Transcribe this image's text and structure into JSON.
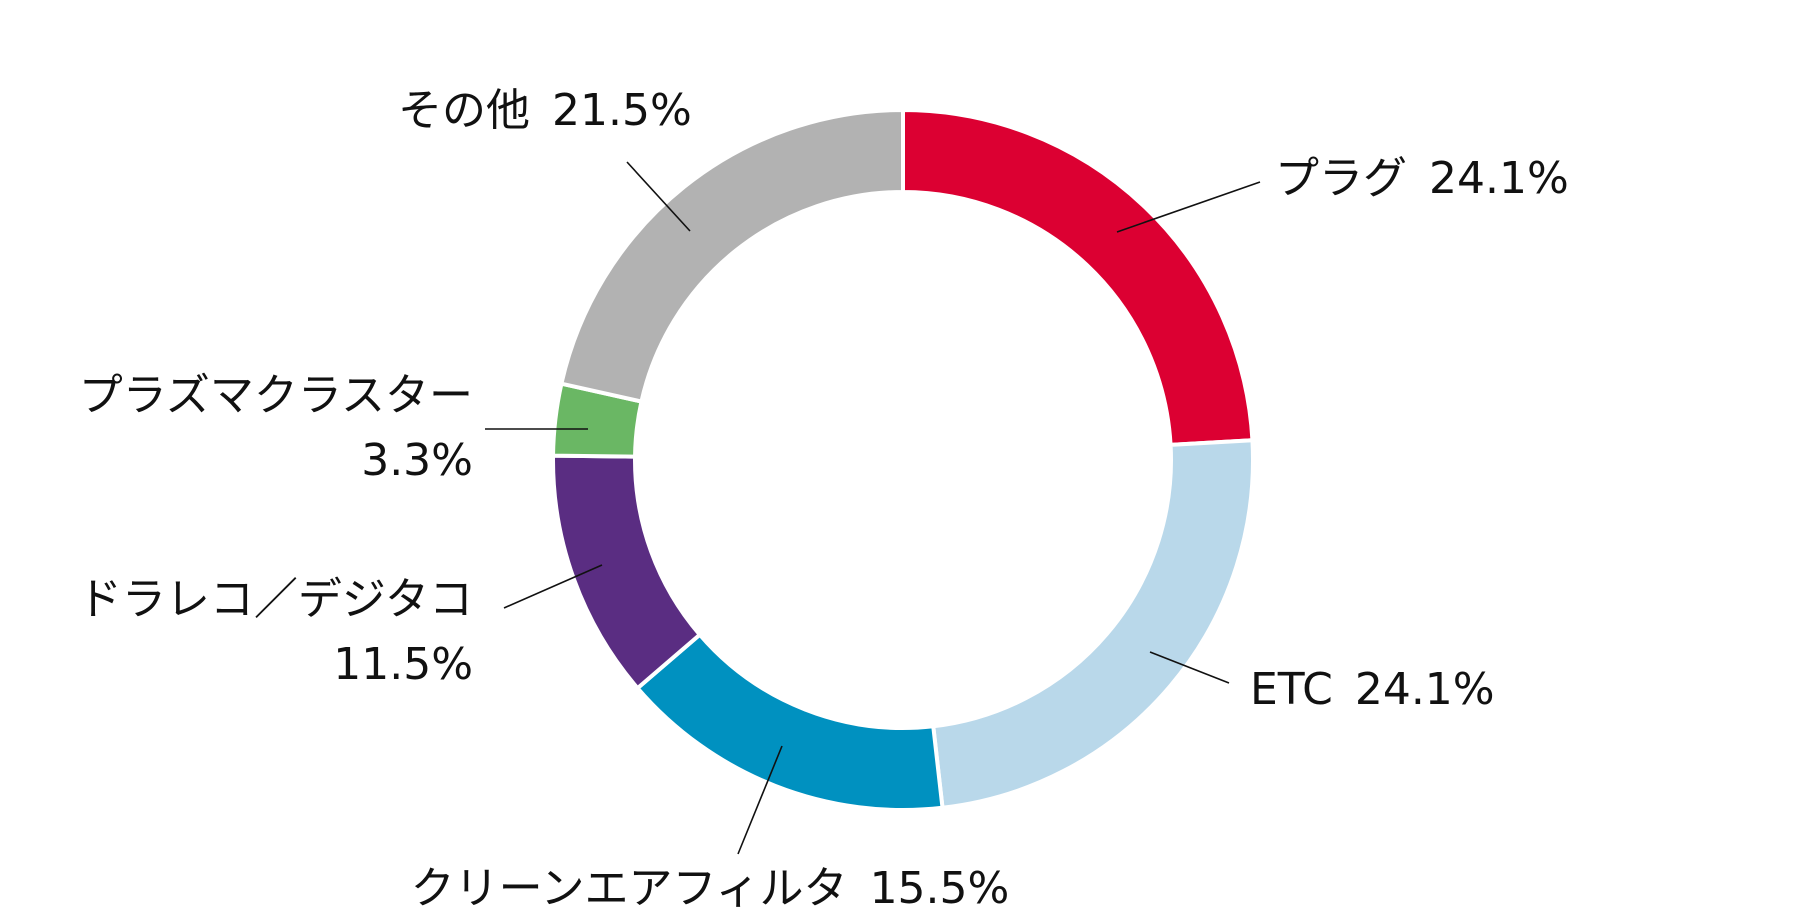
{
  "chart_data": {
    "type": "donut",
    "categories": [
      "プラグ",
      "ETC",
      "クリーンエアフィルタ",
      "ドラレコ／デジタコ",
      "プラズマクラスター",
      "その他"
    ],
    "values": [
      24.1,
      24.1,
      15.5,
      11.5,
      3.3,
      21.5
    ],
    "value_labels": [
      "24.1%",
      "24.1%",
      "15.5%",
      "11.5%",
      "3.3%",
      "21.5%"
    ],
    "colors": [
      "#dc0032",
      "#b9d8ea",
      "#0091c0",
      "#5a2d82",
      "#6ab764",
      "#b2b2b2"
    ]
  }
}
